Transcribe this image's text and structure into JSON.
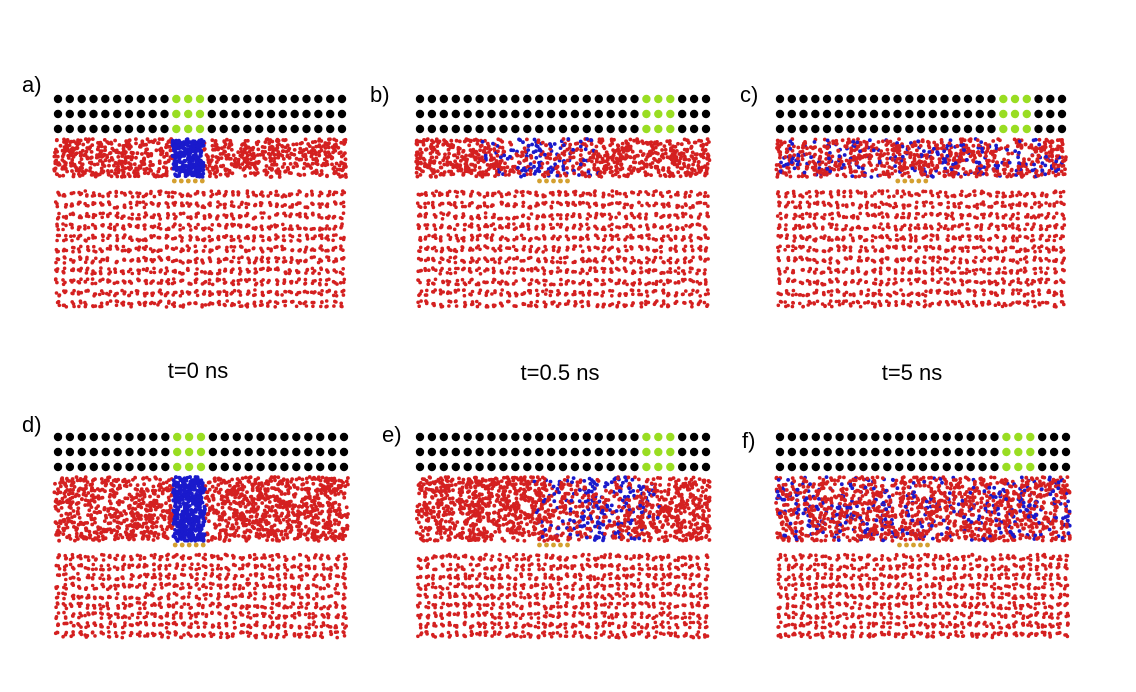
{
  "colors": {
    "background": "#ffffff",
    "top_atoms": "#000000",
    "top_highlight": "#99dd22",
    "liquid": "#d42020",
    "mixed": "#1a1acc",
    "interface": "#d4a030"
  },
  "panels": [
    {
      "id": "a",
      "label": "a)",
      "mixing": "none",
      "highlight_pos": "center",
      "liquid_rows": "thin"
    },
    {
      "id": "b",
      "label": "b)",
      "mixing": "partial",
      "highlight_pos": "right",
      "liquid_rows": "thin"
    },
    {
      "id": "c",
      "label": "c)",
      "mixing": "full",
      "highlight_pos": "right",
      "liquid_rows": "thin"
    },
    {
      "id": "d",
      "label": "d)",
      "mixing": "none",
      "highlight_pos": "center",
      "liquid_rows": "thick"
    },
    {
      "id": "e",
      "label": "e)",
      "mixing": "partial",
      "highlight_pos": "right",
      "liquid_rows": "thick"
    },
    {
      "id": "f",
      "label": "f)",
      "mixing": "full",
      "highlight_pos": "right",
      "liquid_rows": "thick"
    }
  ],
  "time_labels": [
    "t=0 ns",
    "t=0.5 ns",
    "t=5 ns"
  ]
}
